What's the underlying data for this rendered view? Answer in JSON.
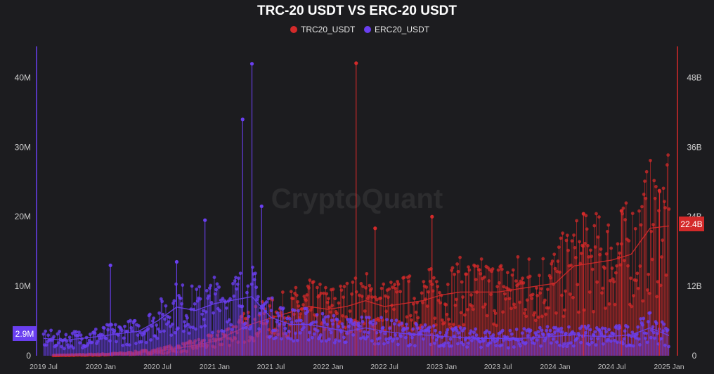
{
  "chart_data": {
    "type": "line",
    "title": "TRC-20 USDT VS ERC-20 USDT",
    "watermark": "CryptoQuant",
    "colors": {
      "background": "#1c1c1f",
      "trc20": "#d42a2a",
      "erc20": "#6a3ff0"
    },
    "legend_position": "top-center",
    "y_left": {
      "ticks": [
        "0",
        "10M",
        "20M",
        "30M",
        "40M"
      ],
      "range": [
        0,
        44500000
      ]
    },
    "y_right": {
      "ticks": [
        "0",
        "12B",
        "24B",
        "36B",
        "48B"
      ],
      "range": [
        0,
        53400000000
      ]
    },
    "x_ticks": [
      "2019 Jul",
      "2020 Jan",
      "2020 Jul",
      "2021 Jan",
      "2021 Jul",
      "2022 Jan",
      "2022 Jul",
      "2023 Jan",
      "2023 Jul",
      "2024 Jan",
      "2024 Jul",
      "2025 Jan"
    ],
    "grid": false,
    "series": [
      {
        "name": "TRC20_USDT",
        "axis": "right",
        "color": "#d42a2a",
        "last_value_label": "22.4B",
        "points": [
          [
            "2019-08",
            50000000.0
          ],
          [
            "2019-10",
            100000000.0
          ],
          [
            "2020-01",
            200000000.0
          ],
          [
            "2020-04",
            400000000.0
          ],
          [
            "2020-07",
            800000000.0
          ],
          [
            "2020-10",
            1500000000.0
          ],
          [
            "2021-01",
            2500000000.0
          ],
          [
            "2021-03",
            4000000000.0
          ],
          [
            "2021-05",
            5500000000.0
          ],
          [
            "2021-07",
            6500000000.0
          ],
          [
            "2021-09",
            7500000000.0
          ],
          [
            "2021-11",
            8500000000.0
          ],
          [
            "2022-01",
            8000000000.0
          ],
          [
            "2022-03",
            8500000000.0
          ],
          [
            "2022-05",
            9500000000.0
          ],
          [
            "2022-07",
            8500000000.0
          ],
          [
            "2022-09",
            9000000000.0
          ],
          [
            "2022-11",
            9500000000.0
          ],
          [
            "2023-01",
            10500000000.0
          ],
          [
            "2023-03",
            11000000000.0
          ],
          [
            "2023-05",
            11000000000.0
          ],
          [
            "2023-07",
            11000000000.0
          ],
          [
            "2023-09",
            11500000000.0
          ],
          [
            "2023-11",
            12000000000.0
          ],
          [
            "2024-01",
            12500000000.0
          ],
          [
            "2024-03",
            15500000000.0
          ],
          [
            "2024-05",
            16000000000.0
          ],
          [
            "2024-07",
            16500000000.0
          ],
          [
            "2024-09",
            17500000000.0
          ],
          [
            "2024-11",
            22000000000.0
          ],
          [
            "2025-01",
            22400000000.0
          ]
        ]
      },
      {
        "name": "ERC20_USDT",
        "axis": "left",
        "color": "#6a3ff0",
        "last_value_label": "2.9M",
        "points": [
          [
            "2019-07",
            2500000.0
          ],
          [
            "2019-09",
            2200000.0
          ],
          [
            "2019-11",
            2500000.0
          ],
          [
            "2020-01",
            2800000.0
          ],
          [
            "2020-03",
            3200000.0
          ],
          [
            "2020-05",
            3500000.0
          ],
          [
            "2020-07",
            5000000.0
          ],
          [
            "2020-09",
            7000000.0
          ],
          [
            "2020-11",
            6500000.0
          ],
          [
            "2021-01",
            7500000.0
          ],
          [
            "2021-03",
            8000000.0
          ],
          [
            "2021-05",
            8500000.0
          ],
          [
            "2021-07",
            5500000.0
          ],
          [
            "2021-09",
            4500000.0
          ],
          [
            "2021-11",
            4500000.0
          ],
          [
            "2022-01",
            4000000.0
          ],
          [
            "2022-03",
            3500000.0
          ],
          [
            "2022-05",
            4000000.0
          ],
          [
            "2022-07",
            3500000.0
          ],
          [
            "2022-09",
            3200000.0
          ],
          [
            "2022-11",
            3000000.0
          ],
          [
            "2023-01",
            2800000.0
          ],
          [
            "2023-03",
            2600000.0
          ],
          [
            "2023-05",
            2500000.0
          ],
          [
            "2023-07",
            2500000.0
          ],
          [
            "2023-09",
            2500000.0
          ],
          [
            "2023-11",
            2600000.0
          ],
          [
            "2024-01",
            2800000.0
          ],
          [
            "2024-03",
            3000000.0
          ],
          [
            "2024-05",
            2800000.0
          ],
          [
            "2024-07",
            2800000.0
          ],
          [
            "2024-09",
            3000000.0
          ],
          [
            "2024-11",
            4000000.0
          ],
          [
            "2025-01",
            2900000.0
          ]
        ]
      }
    ],
    "spikes": [
      {
        "series": "ERC20_USDT",
        "date": "2021-05",
        "value": 42000000.0
      },
      {
        "series": "ERC20_USDT",
        "date": "2021-04",
        "value": 34000000.0
      },
      {
        "series": "ERC20_USDT",
        "date": "2020-12",
        "value": 19500000.0
      },
      {
        "series": "ERC20_USDT",
        "date": "2020-09",
        "value": 13500000.0
      },
      {
        "series": "ERC20_USDT",
        "date": "2020-02",
        "value": 13000000.0
      },
      {
        "series": "ERC20_USDT",
        "date": "2021-06",
        "value": 21500000.0
      },
      {
        "series": "TRC20_USDT",
        "date": "2022-04",
        "value": 50500000000.0
      },
      {
        "series": "TRC20_USDT",
        "date": "2022-06",
        "value": 22000000000.0
      },
      {
        "series": "TRC20_USDT",
        "date": "2022-12",
        "value": 24000000000.0
      },
      {
        "series": "TRC20_USDT",
        "date": "2024-04",
        "value": 24500000000.0
      },
      {
        "series": "TRC20_USDT",
        "date": "2024-08",
        "value": 25000000000.0
      },
      {
        "series": "TRC20_USDT",
        "date": "2024-12",
        "value": 28500000000.0
      }
    ]
  }
}
